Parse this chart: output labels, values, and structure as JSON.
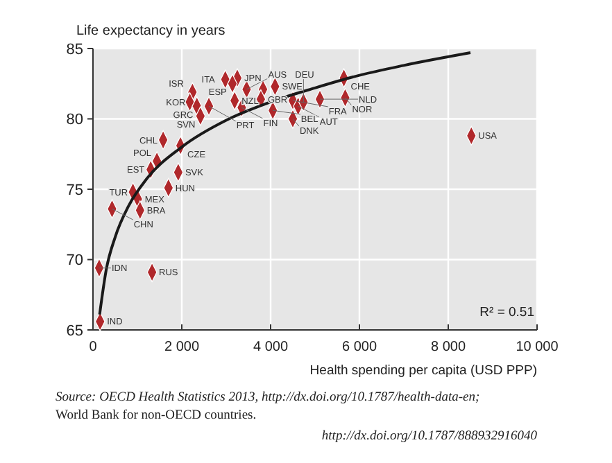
{
  "chart_data": {
    "type": "scatter",
    "ylabel": "Life expectancy in years",
    "xlabel": "Health spending per capita (USD PPP)",
    "xlim": [
      0,
      10000
    ],
    "ylim": [
      65,
      85
    ],
    "xticks": [
      0,
      {
        "value": 2000,
        "label": "2 000"
      },
      {
        "value": 4000,
        "label": "4 000"
      },
      {
        "value": 6000,
        "label": "6 000"
      },
      {
        "value": 8000,
        "label": "8 000"
      },
      {
        "value": 10000,
        "label": "10 000"
      }
    ],
    "yticks": [
      65,
      70,
      75,
      80,
      85
    ],
    "grid": true,
    "marker": "diamond",
    "series": [
      {
        "type": "scatter",
        "color": "#b0282b",
        "x": [
          2980,
          3250,
          3140,
          2240,
          2180,
          2340,
          2610,
          2420,
          3190,
          3350,
          3460,
          3830,
          4100,
          3780,
          4050,
          4500,
          4620,
          4740,
          5110,
          4500,
          5650,
          5680,
          1580,
          1970,
          1440,
          1300,
          1920,
          1700,
          900,
          1010,
          1060,
          430,
          8520,
          140,
          1330,
          160
        ],
        "values": [
          82.8,
          82.9,
          82.5,
          81.9,
          81.2,
          80.9,
          80.9,
          80.2,
          81.3,
          80.8,
          82.1,
          82.1,
          82.3,
          81.4,
          80.6,
          81.3,
          80.9,
          81.2,
          81.4,
          80.0,
          82.9,
          81.5,
          78.5,
          78.1,
          77.0,
          76.4,
          76.2,
          75.1,
          74.8,
          74.3,
          73.5,
          73.6,
          78.8,
          69.4,
          69.1,
          65.6
        ]
      },
      {
        "type": "line",
        "color": "#1a1a1a",
        "marker": "none",
        "x": [
          150,
          300,
          500,
          800,
          1200,
          2000,
          3000,
          4000,
          5000,
          6000,
          7000,
          8500
        ],
        "values": [
          66.1,
          69.3,
          71.6,
          73.8,
          75.7,
          78.0,
          79.9,
          81.2,
          82.2,
          83.1,
          83.8,
          84.7
        ]
      }
    ],
    "annotations": [
      {
        "text": "ITA",
        "x": 2980,
        "y": 82.8
      },
      {
        "text": "JPN",
        "x": 3250,
        "y": 82.9
      },
      {
        "text": "ESP",
        "x": 3140,
        "y": 82.5
      },
      {
        "text": "ISR",
        "x": 2240,
        "y": 81.9
      },
      {
        "text": "KOR",
        "x": 2180,
        "y": 81.2
      },
      {
        "text": "GRC",
        "x": 2340,
        "y": 80.9
      },
      {
        "text": "PRT",
        "x": 2610,
        "y": 80.9
      },
      {
        "text": "SVN",
        "x": 2420,
        "y": 80.2
      },
      {
        "text": "NZL",
        "x": 3190,
        "y": 81.3
      },
      {
        "text": "FIN",
        "x": 3350,
        "y": 80.8
      },
      {
        "text": "AUS",
        "x": 3460,
        "y": 82.1
      },
      {
        "text": "SWE",
        "x": 4100,
        "y": 82.3
      },
      {
        "text": "GBR",
        "x": 3780,
        "y": 81.4
      },
      {
        "text": "BEL",
        "x": 4050,
        "y": 80.6
      },
      {
        "text": "FRA",
        "x": 4500,
        "y": 81.3
      },
      {
        "text": "AUT",
        "x": 4620,
        "y": 80.9
      },
      {
        "text": "DEU",
        "x": 4740,
        "y": 81.2
      },
      {
        "text": "NLD",
        "x": 5110,
        "y": 81.4
      },
      {
        "text": "DNK",
        "x": 4500,
        "y": 80.0
      },
      {
        "text": "CHE",
        "x": 5650,
        "y": 82.9
      },
      {
        "text": "NOR",
        "x": 5680,
        "y": 81.5
      },
      {
        "text": "CHL",
        "x": 1580,
        "y": 78.5
      },
      {
        "text": "CZE",
        "x": 1970,
        "y": 78.1
      },
      {
        "text": "POL",
        "x": 1440,
        "y": 77.0
      },
      {
        "text": "EST",
        "x": 1300,
        "y": 76.4
      },
      {
        "text": "SVK",
        "x": 1920,
        "y": 76.2
      },
      {
        "text": "HUN",
        "x": 1700,
        "y": 75.1
      },
      {
        "text": "TUR",
        "x": 900,
        "y": 74.8
      },
      {
        "text": "MEX",
        "x": 1010,
        "y": 74.3
      },
      {
        "text": "BRA",
        "x": 1060,
        "y": 73.5
      },
      {
        "text": "CHN",
        "x": 430,
        "y": 73.6
      },
      {
        "text": "USA",
        "x": 8520,
        "y": 78.8
      },
      {
        "text": "IDN",
        "x": 140,
        "y": 69.4
      },
      {
        "text": "RUS",
        "x": 1330,
        "y": 69.1
      },
      {
        "text": "IND",
        "x": 160,
        "y": 65.6
      },
      "R² = 0.51",
      "Source: OECD Health Statistics 2013, http://dx.doi.org/10.1787/health-data-en;",
      "World Bank for non-OECD countries.",
      "http://dx.doi.org/10.1787/888932916040"
    ]
  }
}
